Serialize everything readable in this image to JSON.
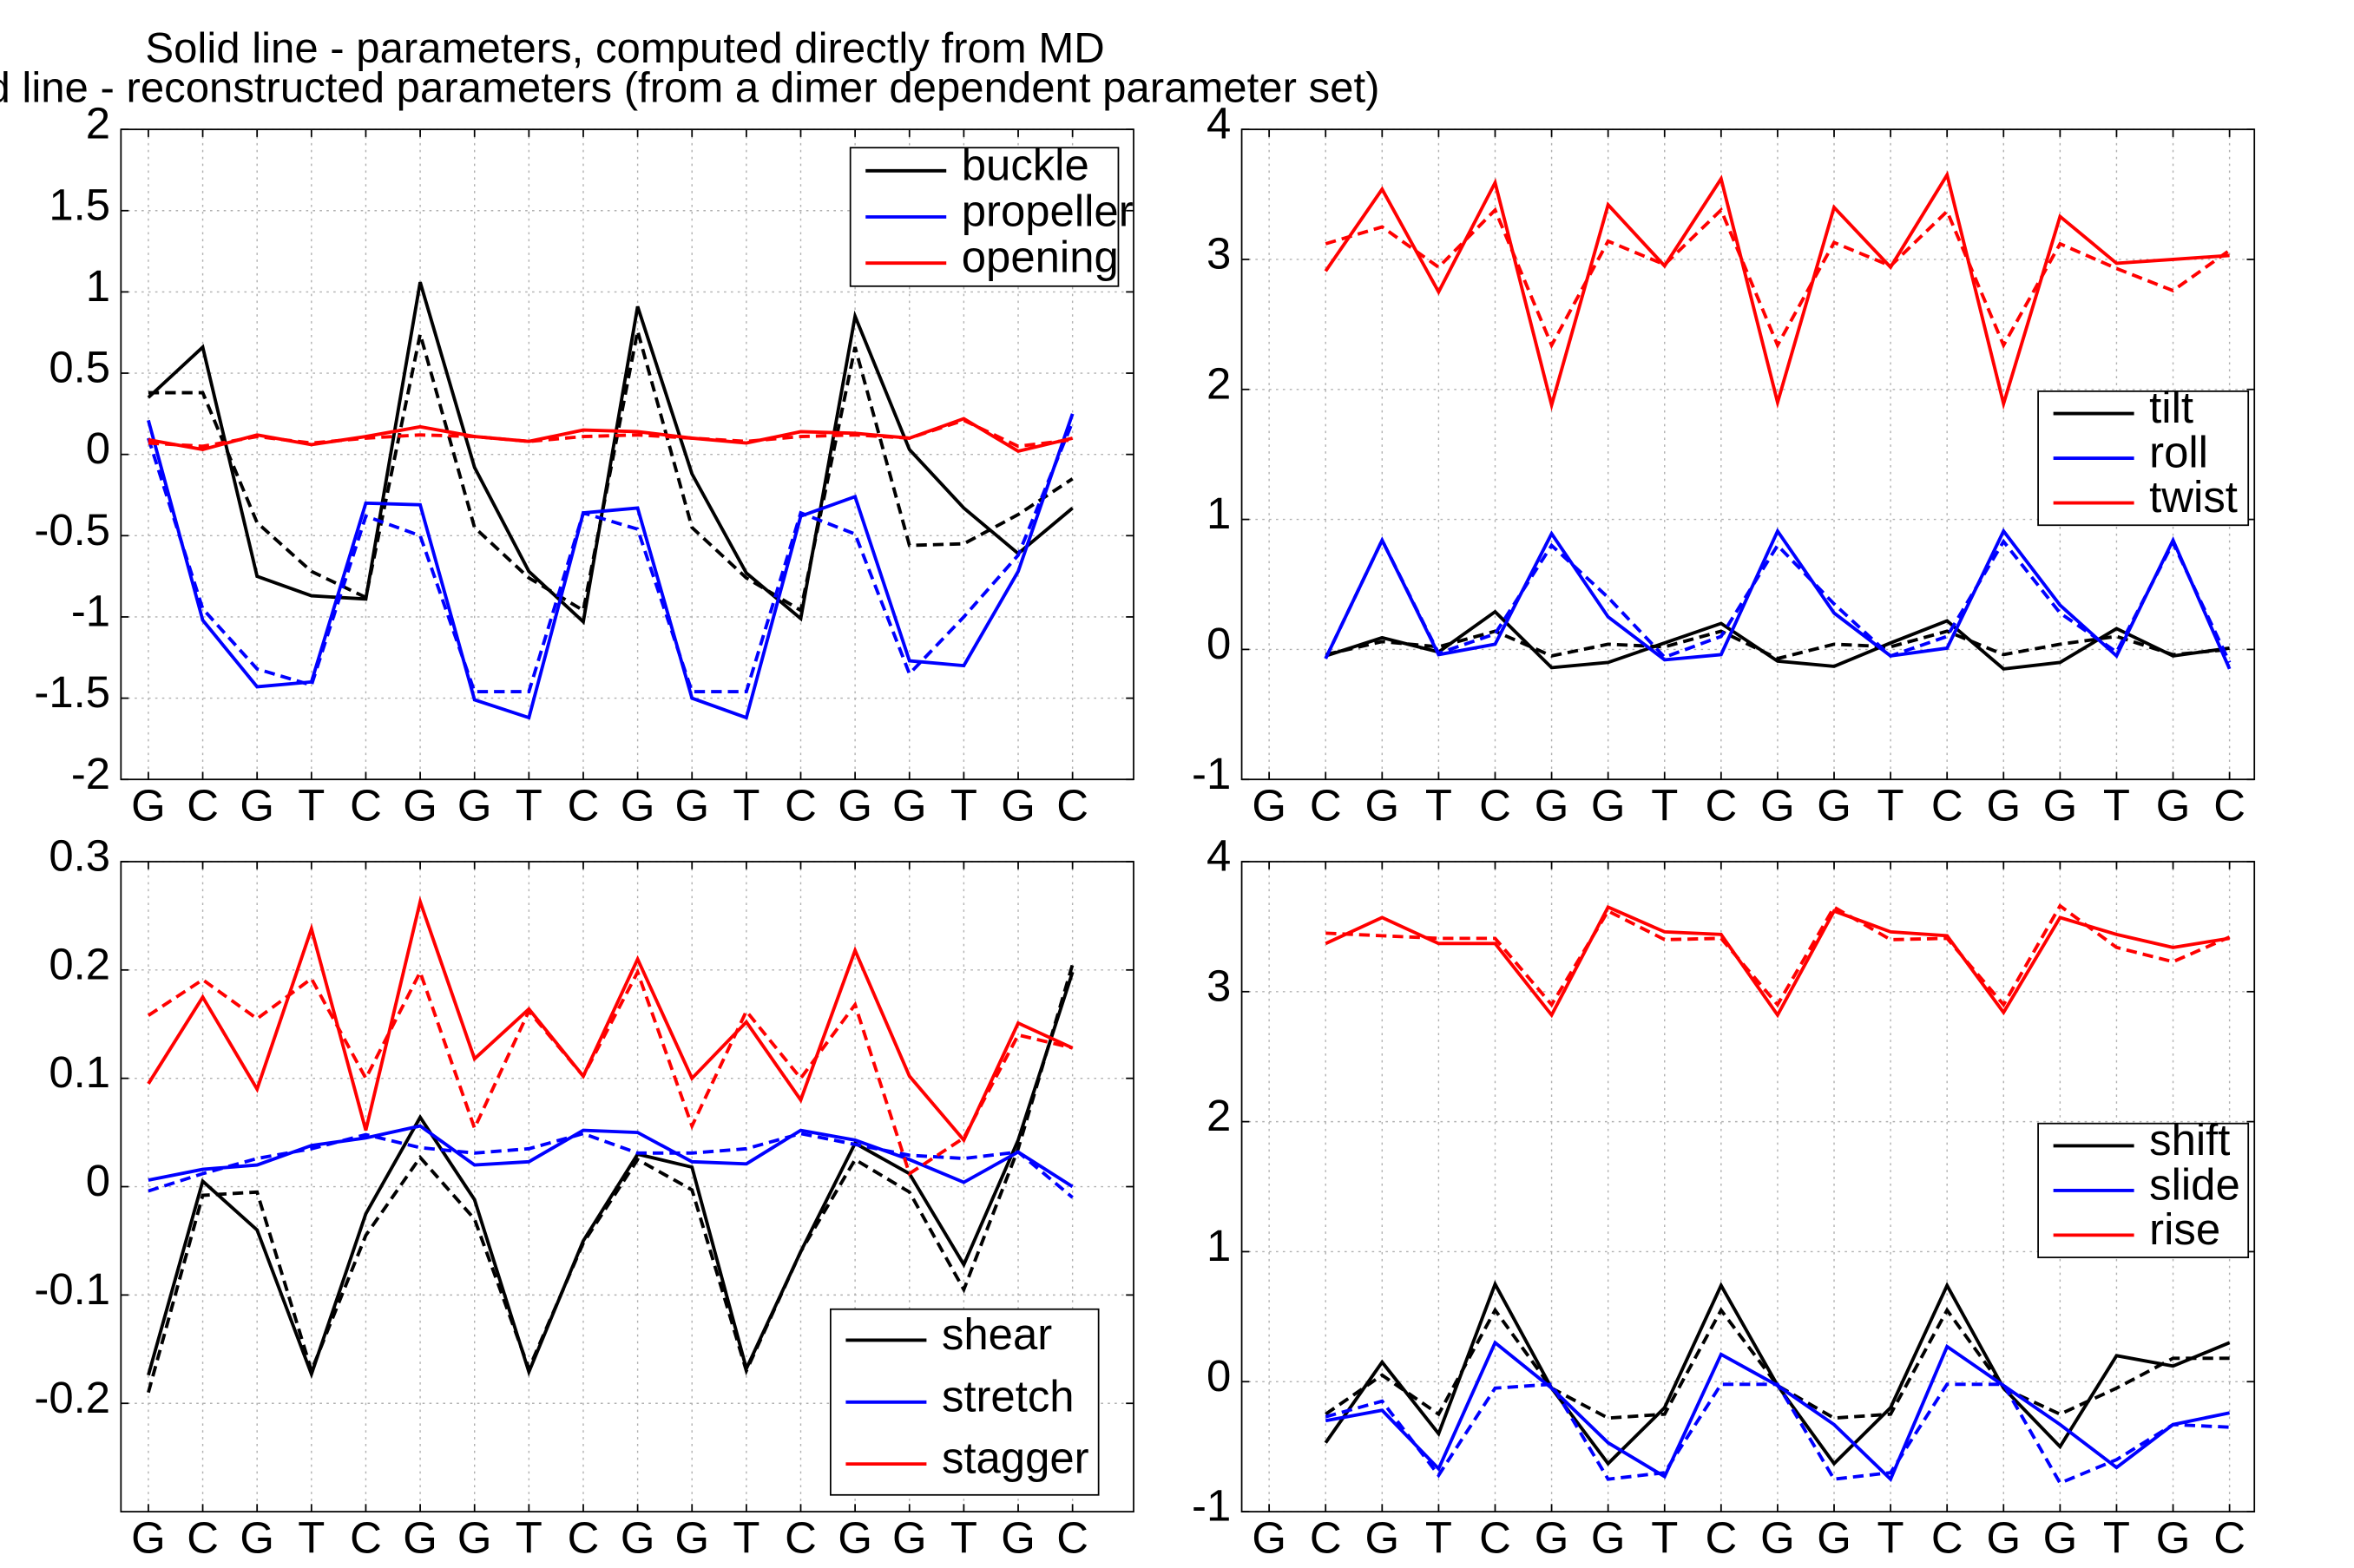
{
  "figure": {
    "title_line1": "Solid line - parameters, computed directly from MD",
    "title_line2": "dashed line - reconstructed parameters (from a dimer dependent parameter set)"
  },
  "style": {
    "grid_color": "#b0b0b0"
  },
  "chart_data": [
    {
      "type": "line",
      "id": "bp-angles",
      "categories": [
        "G",
        "C",
        "G",
        "T",
        "C",
        "G",
        "G",
        "T",
        "C",
        "G",
        "G",
        "T",
        "C",
        "G",
        "G",
        "T",
        "G",
        "C"
      ],
      "ylim": [
        -2,
        2
      ],
      "yticks": [
        -2,
        -1.5,
        -1,
        -0.5,
        0,
        0.5,
        1,
        1.5,
        2
      ],
      "grid": true,
      "legend_position": "top-right",
      "series": [
        {
          "name": "buckle",
          "color": "#000000",
          "style": "solid",
          "values": [
            0.35,
            0.66,
            -0.75,
            -0.87,
            -0.89,
            1.06,
            -0.08,
            -0.72,
            -1.03,
            0.91,
            -0.12,
            -0.73,
            -1.01,
            0.85,
            0.03,
            -0.33,
            -0.61,
            -0.33
          ]
        },
        {
          "name": "buckle",
          "color": "#000000",
          "style": "dashed",
          "values": [
            0.38,
            0.38,
            -0.42,
            -0.72,
            -0.88,
            0.74,
            -0.45,
            -0.76,
            -0.96,
            0.76,
            -0.45,
            -0.76,
            -0.96,
            0.66,
            -0.56,
            -0.55,
            -0.37,
            -0.15
          ]
        },
        {
          "name": "propeller",
          "color": "#0000ff",
          "style": "solid",
          "values": [
            0.21,
            -1.02,
            -1.43,
            -1.4,
            -0.3,
            -0.31,
            -1.51,
            -1.62,
            -0.36,
            -0.33,
            -1.5,
            -1.62,
            -0.38,
            -0.26,
            -1.27,
            -1.3,
            -0.72,
            0.25
          ]
        },
        {
          "name": "propeller",
          "color": "#0000ff",
          "style": "dashed",
          "values": [
            0.1,
            -0.95,
            -1.32,
            -1.42,
            -0.38,
            -0.5,
            -1.46,
            -1.46,
            -0.36,
            -0.46,
            -1.46,
            -1.46,
            -0.36,
            -0.49,
            -1.35,
            -1.0,
            -0.62,
            0.2
          ]
        },
        {
          "name": "opening",
          "color": "#ff0000",
          "style": "solid",
          "values": [
            0.09,
            0.03,
            0.12,
            0.06,
            0.11,
            0.17,
            0.11,
            0.08,
            0.15,
            0.14,
            0.1,
            0.07,
            0.14,
            0.13,
            0.1,
            0.22,
            0.02,
            0.1
          ]
        },
        {
          "name": "opening",
          "color": "#ff0000",
          "style": "dashed",
          "values": [
            0.07,
            0.05,
            0.11,
            0.07,
            0.1,
            0.12,
            0.11,
            0.08,
            0.11,
            0.12,
            0.1,
            0.08,
            0.11,
            0.12,
            0.1,
            0.21,
            0.05,
            0.09
          ]
        }
      ]
    },
    {
      "type": "line",
      "id": "step-angles",
      "categories": [
        "G",
        "C",
        "G",
        "T",
        "C",
        "G",
        "G",
        "T",
        "C",
        "G",
        "G",
        "T",
        "C",
        "G",
        "G",
        "T",
        "G",
        "C"
      ],
      "ylim": [
        -1,
        4
      ],
      "yticks": [
        -1,
        0,
        1,
        2,
        3,
        4
      ],
      "grid": true,
      "legend_position": "center-right",
      "series": [
        {
          "name": "tilt",
          "color": "#000000",
          "style": "solid",
          "values": [
            null,
            -0.05,
            0.09,
            -0.02,
            0.29,
            -0.14,
            -0.1,
            0.05,
            0.2,
            -0.09,
            -0.13,
            0.05,
            0.22,
            -0.15,
            -0.1,
            0.16,
            -0.05,
            0.01
          ]
        },
        {
          "name": "tilt",
          "color": "#000000",
          "style": "dashed",
          "values": [
            null,
            -0.04,
            0.06,
            0.02,
            0.14,
            -0.05,
            0.04,
            0.02,
            0.14,
            -0.07,
            0.04,
            0.02,
            0.14,
            -0.04,
            0.04,
            0.1,
            -0.04,
            0.0
          ]
        },
        {
          "name": "roll",
          "color": "#0000ff",
          "style": "solid",
          "values": [
            null,
            -0.07,
            0.84,
            -0.04,
            0.04,
            0.89,
            0.25,
            -0.08,
            -0.04,
            0.91,
            0.28,
            -0.05,
            0.01,
            0.91,
            0.34,
            -0.05,
            0.84,
            -0.15
          ]
        },
        {
          "name": "roll",
          "color": "#0000ff",
          "style": "dashed",
          "values": [
            null,
            -0.07,
            0.84,
            -0.03,
            0.12,
            0.8,
            0.4,
            -0.06,
            0.1,
            0.8,
            0.35,
            -0.05,
            0.1,
            0.83,
            0.28,
            -0.02,
            0.82,
            -0.1
          ]
        },
        {
          "name": "twist",
          "color": "#ff0000",
          "style": "solid",
          "values": [
            null,
            2.91,
            3.54,
            2.75,
            3.59,
            1.88,
            3.42,
            2.95,
            3.62,
            1.9,
            3.4,
            2.94,
            3.65,
            1.89,
            3.33,
            2.97,
            3.0,
            3.03
          ]
        },
        {
          "name": "twist",
          "color": "#ff0000",
          "style": "dashed",
          "values": [
            null,
            3.12,
            3.25,
            2.94,
            3.38,
            2.34,
            3.14,
            2.96,
            3.38,
            2.34,
            3.13,
            2.95,
            3.37,
            2.34,
            3.12,
            2.93,
            2.76,
            3.07
          ]
        }
      ]
    },
    {
      "type": "line",
      "id": "bp-translations",
      "categories": [
        "G",
        "C",
        "G",
        "T",
        "C",
        "G",
        "G",
        "T",
        "C",
        "G",
        "G",
        "T",
        "C",
        "G",
        "G",
        "T",
        "G",
        "C"
      ],
      "ylim": [
        -0.3,
        0.3
      ],
      "yticks": [
        -0.2,
        -0.1,
        0,
        0.1,
        0.2,
        0.3
      ],
      "grid": true,
      "legend_position": "bottom-right",
      "series": [
        {
          "name": "shear",
          "color": "#000000",
          "style": "solid",
          "values": [
            -0.174,
            0.005,
            -0.04,
            -0.173,
            -0.025,
            0.064,
            -0.012,
            -0.171,
            -0.05,
            0.03,
            0.018,
            -0.168,
            -0.06,
            0.04,
            0.012,
            -0.072,
            0.043,
            0.198
          ]
        },
        {
          "name": "shear",
          "color": "#000000",
          "style": "dashed",
          "values": [
            -0.19,
            -0.008,
            -0.005,
            -0.17,
            -0.045,
            0.027,
            -0.03,
            -0.168,
            -0.052,
            0.025,
            -0.003,
            -0.17,
            -0.06,
            0.025,
            -0.005,
            -0.095,
            0.035,
            0.205
          ]
        },
        {
          "name": "stretch",
          "color": "#0000ff",
          "style": "solid",
          "values": [
            0.006,
            0.016,
            0.02,
            0.038,
            0.045,
            0.056,
            0.02,
            0.023,
            0.052,
            0.05,
            0.023,
            0.021,
            0.052,
            0.043,
            0.025,
            0.004,
            0.032,
            0.0
          ]
        },
        {
          "name": "stretch",
          "color": "#0000ff",
          "style": "dashed",
          "values": [
            -0.004,
            0.012,
            0.026,
            0.035,
            0.048,
            0.036,
            0.031,
            0.035,
            0.049,
            0.031,
            0.031,
            0.035,
            0.049,
            0.039,
            0.029,
            0.026,
            0.032,
            -0.01
          ]
        },
        {
          "name": "stagger",
          "color": "#ff0000",
          "style": "solid",
          "values": [
            0.095,
            0.175,
            0.09,
            0.238,
            0.052,
            0.263,
            0.118,
            0.164,
            0.102,
            0.21,
            0.1,
            0.152,
            0.08,
            0.218,
            0.102,
            0.043,
            0.151,
            0.128
          ]
        },
        {
          "name": "stagger",
          "color": "#ff0000",
          "style": "dashed",
          "values": [
            0.158,
            0.191,
            0.155,
            0.192,
            0.1,
            0.198,
            0.054,
            0.162,
            0.102,
            0.198,
            0.056,
            0.162,
            0.1,
            0.168,
            0.012,
            0.045,
            0.14,
            0.128
          ]
        }
      ]
    },
    {
      "type": "line",
      "id": "step-translations",
      "categories": [
        "G",
        "C",
        "G",
        "T",
        "C",
        "G",
        "G",
        "T",
        "C",
        "G",
        "G",
        "T",
        "C",
        "G",
        "G",
        "T",
        "G",
        "C"
      ],
      "ylim": [
        -1,
        4
      ],
      "yticks": [
        -1,
        0,
        1,
        2,
        3,
        4
      ],
      "grid": true,
      "legend_position": "center-right",
      "series": [
        {
          "name": "shift",
          "color": "#000000",
          "style": "solid",
          "values": [
            null,
            -0.47,
            0.15,
            -0.4,
            0.75,
            -0.05,
            -0.63,
            -0.2,
            0.74,
            -0.03,
            -0.63,
            -0.2,
            0.74,
            -0.05,
            -0.5,
            0.2,
            0.12,
            0.3
          ]
        },
        {
          "name": "shift",
          "color": "#000000",
          "style": "dashed",
          "values": [
            null,
            -0.25,
            0.05,
            -0.25,
            0.55,
            -0.05,
            -0.28,
            -0.25,
            0.55,
            -0.03,
            -0.28,
            -0.25,
            0.55,
            -0.05,
            -0.25,
            -0.05,
            0.18,
            0.18
          ]
        },
        {
          "name": "slide",
          "color": "#0000ff",
          "style": "solid",
          "values": [
            null,
            -0.3,
            -0.22,
            -0.67,
            0.3,
            -0.05,
            -0.47,
            -0.73,
            0.21,
            -0.03,
            -0.33,
            -0.75,
            0.27,
            -0.03,
            -0.33,
            -0.66,
            -0.33,
            -0.24
          ]
        },
        {
          "name": "slide",
          "color": "#0000ff",
          "style": "dashed",
          "values": [
            null,
            -0.27,
            -0.15,
            -0.72,
            -0.05,
            -0.02,
            -0.75,
            -0.7,
            -0.02,
            -0.02,
            -0.75,
            -0.7,
            -0.02,
            -0.02,
            -0.78,
            -0.6,
            -0.33,
            -0.35
          ]
        },
        {
          "name": "rise",
          "color": "#ff0000",
          "style": "solid",
          "values": [
            null,
            3.37,
            3.57,
            3.37,
            3.37,
            2.82,
            3.65,
            3.46,
            3.44,
            2.82,
            3.62,
            3.46,
            3.43,
            2.84,
            3.57,
            3.44,
            3.34,
            3.41
          ]
        },
        {
          "name": "rise",
          "color": "#ff0000",
          "style": "dashed",
          "values": [
            null,
            3.45,
            3.43,
            3.41,
            3.41,
            2.9,
            3.62,
            3.4,
            3.41,
            2.9,
            3.65,
            3.4,
            3.41,
            2.9,
            3.66,
            3.34,
            3.23,
            3.42
          ]
        }
      ]
    }
  ]
}
